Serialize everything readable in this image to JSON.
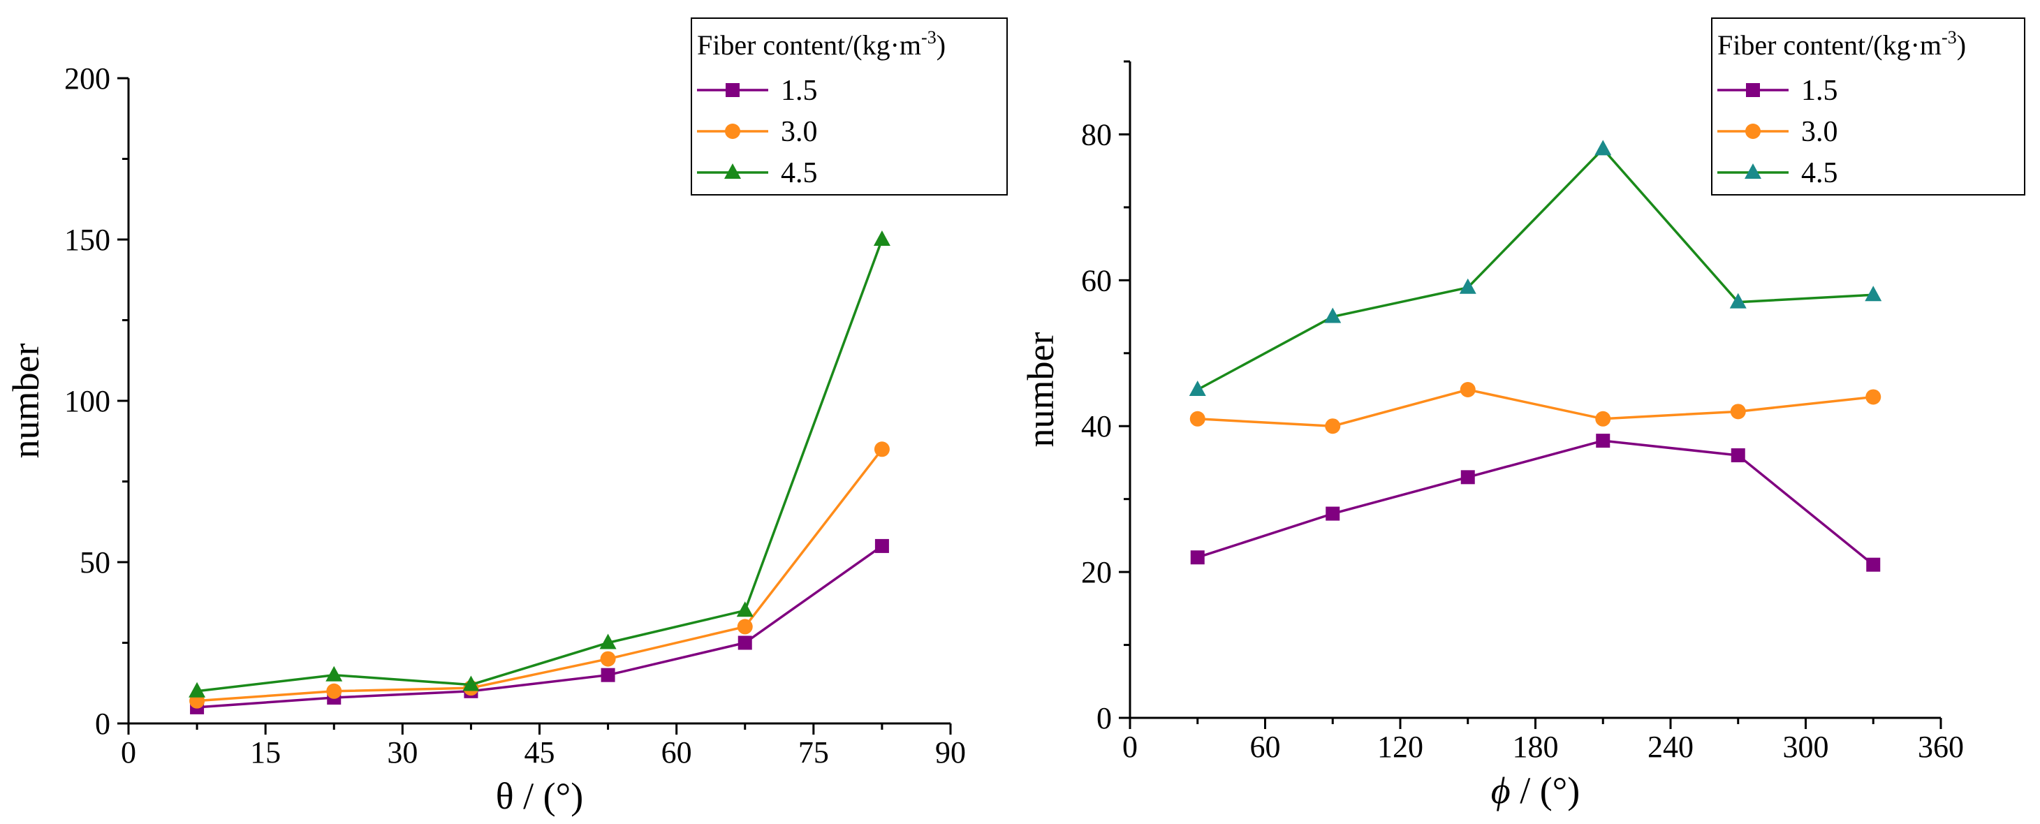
{
  "chart_data": [
    {
      "type": "line",
      "xlabel": "θ / (°)",
      "ylabel": "number",
      "xlim": [
        0,
        90
      ],
      "ylim": [
        0,
        200
      ],
      "xticks": [
        0,
        15,
        30,
        45,
        60,
        75,
        90
      ],
      "yticks": [
        0,
        50,
        100,
        150,
        200
      ],
      "x": [
        7.5,
        22.5,
        37.5,
        52.5,
        67.5,
        82.5
      ],
      "legend": {
        "title": "Fiber content/(kg·m",
        "title_sup": "-3",
        "title_end": ")",
        "placement": "top-right"
      },
      "series": [
        {
          "name": "1.5",
          "marker": "square",
          "color": "#800080",
          "values": [
            5,
            8,
            10,
            15,
            25,
            55
          ]
        },
        {
          "name": "3.0",
          "marker": "circle",
          "color": "#FF8C1A",
          "values": [
            7,
            10,
            11,
            20,
            30,
            85
          ]
        },
        {
          "name": "4.5",
          "marker": "triangle",
          "color": "#1A8A1A",
          "values": [
            10,
            15,
            12,
            25,
            35,
            150
          ]
        }
      ]
    },
    {
      "type": "line",
      "xlabel_symbol": "ϕ",
      "xlabel_rest": " / (°)",
      "ylabel": "number",
      "xlim": [
        0,
        360
      ],
      "ylim": [
        0,
        90
      ],
      "xticks": [
        0,
        60,
        120,
        180,
        240,
        300,
        360
      ],
      "yticks": [
        0,
        20,
        40,
        60,
        80
      ],
      "x": [
        30,
        90,
        150,
        210,
        270,
        330
      ],
      "legend": {
        "title": "Fiber content/(kg·m",
        "title_sup": "-3",
        "title_end": ")",
        "placement": "top-right"
      },
      "series": [
        {
          "name": "1.5",
          "marker": "square",
          "color": "#800080",
          "values": [
            22,
            28,
            33,
            38,
            36,
            21
          ]
        },
        {
          "name": "3.0",
          "marker": "circle",
          "color": "#FF8C1A",
          "values": [
            41,
            40,
            45,
            41,
            42,
            44
          ]
        },
        {
          "name": "4.5",
          "marker": "triangle",
          "color": "#1A8A1A",
          "marker_fill": "#1A8A8A",
          "values": [
            45,
            55,
            59,
            78,
            57,
            58
          ]
        }
      ]
    }
  ]
}
